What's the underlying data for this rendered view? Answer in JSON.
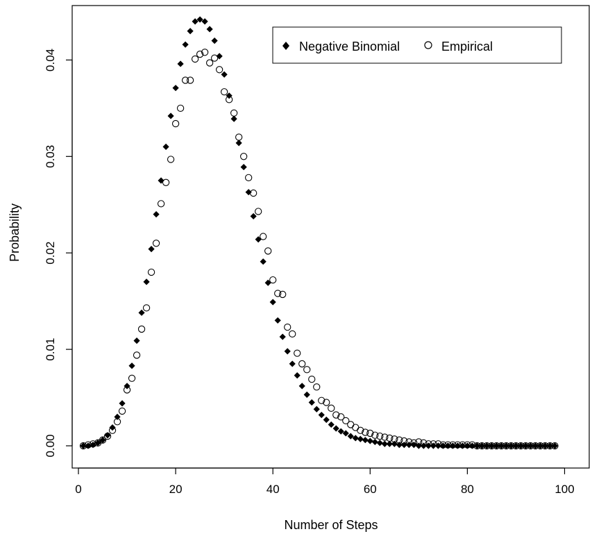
{
  "chart_data": {
    "type": "scatter",
    "xlabel": "Number of Steps",
    "ylabel": "Probability",
    "xlim": [
      0,
      100
    ],
    "ylim": [
      -0.0015,
      0.0455
    ],
    "x_ticks": [
      0,
      20,
      40,
      60,
      80,
      100
    ],
    "x_tick_labels": [
      "0",
      "20",
      "40",
      "60",
      "80",
      "100"
    ],
    "y_ticks": [
      0.0,
      0.01,
      0.02,
      0.03,
      0.04
    ],
    "y_tick_labels": [
      "0.00",
      "0.01",
      "0.02",
      "0.03",
      "0.04"
    ],
    "grid": false,
    "legend_position": "top-right",
    "series": [
      {
        "name": "Negative Binomial",
        "marker": "filled-diamond",
        "color": "#000000",
        "x": [
          1,
          2,
          3,
          4,
          5,
          6,
          7,
          8,
          9,
          10,
          11,
          12,
          13,
          14,
          15,
          16,
          17,
          18,
          19,
          20,
          21,
          22,
          23,
          24,
          25,
          26,
          27,
          28,
          29,
          30,
          31,
          32,
          33,
          34,
          35,
          36,
          37,
          38,
          39,
          40,
          41,
          42,
          43,
          44,
          45,
          46,
          47,
          48,
          49,
          50,
          51,
          52,
          53,
          54,
          55,
          56,
          57,
          58,
          59,
          60,
          61,
          62,
          63,
          64,
          65,
          66,
          67,
          68,
          69,
          70,
          71,
          72,
          73,
          74,
          75,
          76,
          77,
          78,
          79,
          80,
          81,
          82,
          83,
          84,
          85,
          86,
          87,
          88,
          89,
          90,
          91,
          92,
          93,
          94,
          95,
          96,
          97,
          98
        ],
        "y": [
          0.0,
          0.0,
          0.0001,
          0.0003,
          0.0006,
          0.0011,
          0.0019,
          0.003,
          0.0044,
          0.0062,
          0.0083,
          0.0109,
          0.0138,
          0.017,
          0.0204,
          0.024,
          0.0275,
          0.031,
          0.0342,
          0.0371,
          0.0396,
          0.0416,
          0.043,
          0.044,
          0.0442,
          0.044,
          0.0432,
          0.042,
          0.0404,
          0.0385,
          0.0363,
          0.0339,
          0.0314,
          0.0289,
          0.0263,
          0.0238,
          0.0214,
          0.0191,
          0.0169,
          0.0149,
          0.013,
          0.0113,
          0.0098,
          0.0085,
          0.0073,
          0.0062,
          0.0053,
          0.0045,
          0.0038,
          0.0032,
          0.0027,
          0.0022,
          0.0018,
          0.0015,
          0.0013,
          0.001,
          0.0008,
          0.0007,
          0.0006,
          0.0005,
          0.0004,
          0.0003,
          0.0002,
          0.0002,
          0.0002,
          0.0001,
          0.0001,
          0.0001,
          0.0001,
          0.0,
          0.0,
          0.0,
          0.0,
          0.0,
          0.0,
          0.0,
          0.0,
          0.0,
          0.0,
          0.0,
          0.0,
          0.0,
          0.0,
          0.0,
          0.0,
          0.0,
          0.0,
          0.0,
          0.0,
          0.0,
          0.0,
          0.0,
          0.0,
          0.0,
          0.0,
          0.0,
          0.0,
          0.0
        ]
      },
      {
        "name": "Empirical",
        "marker": "open-circle",
        "color": "#000000",
        "x": [
          1,
          2,
          3,
          4,
          5,
          6,
          7,
          8,
          9,
          10,
          11,
          12,
          13,
          14,
          15,
          16,
          17,
          18,
          19,
          20,
          21,
          22,
          23,
          24,
          25,
          26,
          27,
          28,
          29,
          30,
          31,
          32,
          33,
          34,
          35,
          36,
          37,
          38,
          39,
          40,
          41,
          42,
          43,
          44,
          45,
          46,
          47,
          48,
          49,
          50,
          51,
          52,
          53,
          54,
          55,
          56,
          57,
          58,
          59,
          60,
          61,
          62,
          63,
          64,
          65,
          66,
          67,
          68,
          69,
          70,
          71,
          72,
          73,
          74,
          75,
          76,
          77,
          78,
          79,
          80,
          81,
          82,
          83,
          84,
          85,
          86,
          87,
          88,
          89,
          90,
          91,
          92,
          93,
          94,
          95,
          96,
          97,
          98
        ],
        "y": [
          0.0,
          0.0001,
          0.0002,
          0.0003,
          0.0006,
          0.001,
          0.0016,
          0.0025,
          0.0036,
          0.0058,
          0.007,
          0.0094,
          0.0121,
          0.0143,
          0.018,
          0.021,
          0.0251,
          0.0273,
          0.0297,
          0.0334,
          0.035,
          0.0379,
          0.0379,
          0.0401,
          0.0406,
          0.0408,
          0.0397,
          0.0402,
          0.039,
          0.0367,
          0.0359,
          0.0345,
          0.032,
          0.03,
          0.0278,
          0.0262,
          0.0243,
          0.0217,
          0.0202,
          0.0172,
          0.0158,
          0.0157,
          0.0123,
          0.0116,
          0.0096,
          0.0085,
          0.0079,
          0.0069,
          0.0061,
          0.0047,
          0.0045,
          0.0039,
          0.0032,
          0.003,
          0.0026,
          0.0022,
          0.0019,
          0.0016,
          0.0014,
          0.0013,
          0.0011,
          0.001,
          0.0009,
          0.0008,
          0.0007,
          0.0006,
          0.0005,
          0.0004,
          0.0003,
          0.0004,
          0.0003,
          0.0002,
          0.0002,
          0.0002,
          0.0001,
          0.0001,
          0.0001,
          0.0001,
          0.0001,
          0.0001,
          0.0001,
          0.0,
          0.0,
          0.0,
          0.0,
          0.0,
          0.0,
          0.0,
          0.0,
          0.0,
          0.0,
          0.0,
          0.0,
          0.0,
          0.0,
          0.0,
          0.0,
          0.0
        ]
      }
    ]
  }
}
